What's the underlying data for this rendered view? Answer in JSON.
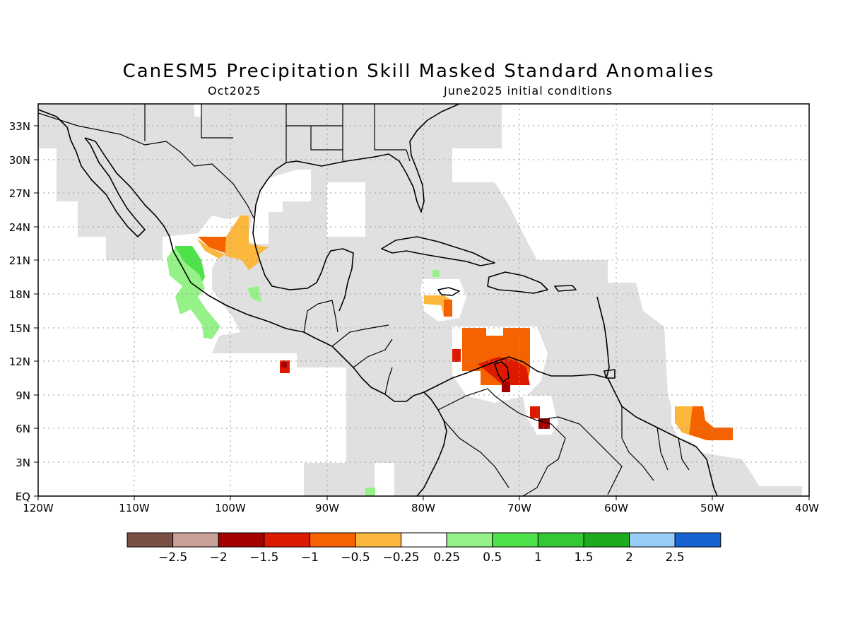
{
  "title": "CanESM5 Precipitation Skill Masked Standard Anomalies",
  "subtitle_left": "Oct2025",
  "subtitle_right": "June2025 initial conditions",
  "map": {
    "lat_labels": [
      "33N",
      "30N",
      "27N",
      "24N",
      "21N",
      "18N",
      "15N",
      "12N",
      "9N",
      "6N",
      "3N",
      "EQ"
    ],
    "lon_labels": [
      "120W",
      "110W",
      "100W",
      "90W",
      "80W",
      "70W",
      "60W",
      "50W",
      "40W"
    ]
  },
  "colorbar": {
    "colors": [
      "#7a4f45",
      "#c8a097",
      "#a50000",
      "#dd1a00",
      "#f56200",
      "#fcb73d",
      "#ffffff",
      "#95f288",
      "#4ee24a",
      "#35c735",
      "#1fab1f",
      "#97cdf7",
      "#1763d3"
    ],
    "labels": [
      "−2.5",
      "−2",
      "−1.5",
      "−1",
      "−0.5",
      "−0.25",
      "0.25",
      "0.5",
      "1",
      "1.5",
      "2",
      "2.5"
    ]
  },
  "colors": {
    "masked": "#e0e0e0",
    "land_line": "#000000"
  }
}
